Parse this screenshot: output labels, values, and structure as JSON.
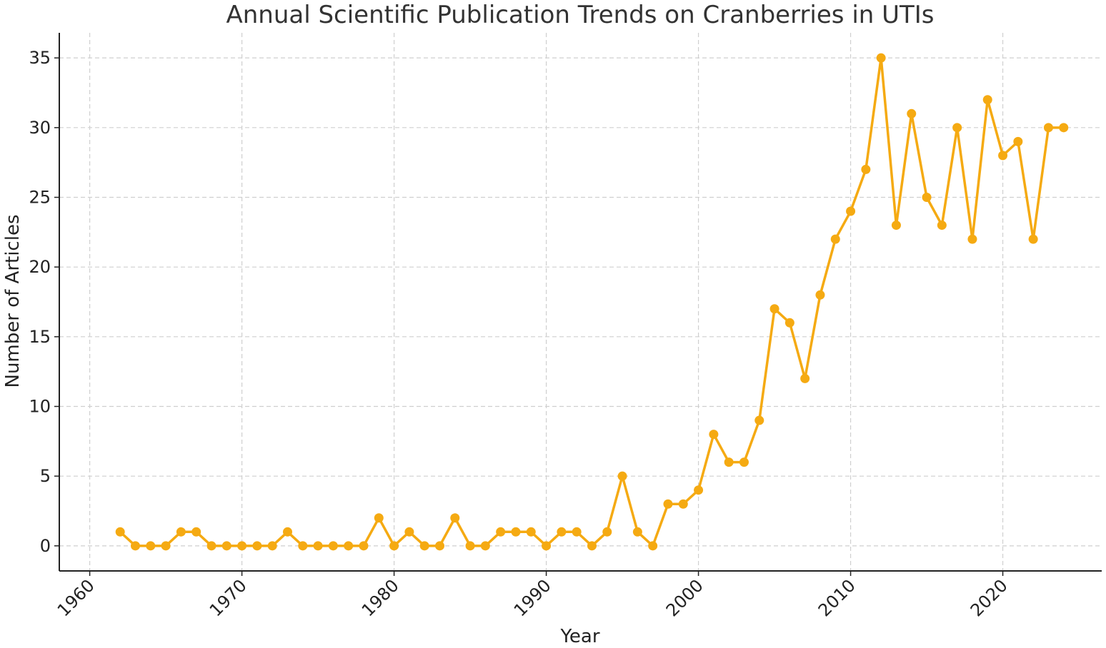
{
  "chart_data": {
    "type": "line",
    "title": "Annual Scientific Publication Trends on Cranberries in UTIs",
    "xlabel": "Year",
    "ylabel": "Number of Articles",
    "xlim": [
      1958,
      2026.5
    ],
    "ylim": [
      -1.8,
      36.8
    ],
    "xticks": [
      1960,
      1970,
      1980,
      1990,
      2000,
      2010,
      2020
    ],
    "yticks": [
      0,
      5,
      10,
      15,
      20,
      25,
      30,
      35
    ],
    "grid": true,
    "color": "#F5AA12",
    "series": [
      {
        "x": [
          1962,
          1963,
          1964,
          1965,
          1966,
          1967,
          1968,
          1969,
          1970,
          1971,
          1972,
          1973,
          1974,
          1975,
          1976,
          1977,
          1978,
          1979,
          1980,
          1981,
          1982,
          1983,
          1984,
          1985,
          1986,
          1987,
          1988,
          1989,
          1990,
          1991,
          1992,
          1993,
          1994,
          1995,
          1996,
          1997,
          1998,
          1999,
          2000,
          2001,
          2002,
          2003,
          2004,
          2005,
          2006,
          2007,
          2008,
          2009,
          2010,
          2011,
          2012,
          2013,
          2014,
          2015,
          2016,
          2017,
          2018,
          2019,
          2020,
          2021,
          2022,
          2023,
          2024
        ],
        "values": [
          1,
          0,
          0,
          0,
          1,
          1,
          0,
          0,
          0,
          0,
          0,
          1,
          0,
          0,
          0,
          0,
          0,
          2,
          0,
          1,
          0,
          0,
          2,
          0,
          0,
          1,
          1,
          1,
          0,
          1,
          1,
          0,
          1,
          5,
          1,
          0,
          3,
          3,
          4,
          8,
          6,
          6,
          9,
          17,
          16,
          12,
          18,
          22,
          24,
          27,
          35,
          23,
          31,
          25,
          23,
          30,
          22,
          32,
          28,
          29,
          22,
          30,
          30
        ]
      }
    ]
  }
}
